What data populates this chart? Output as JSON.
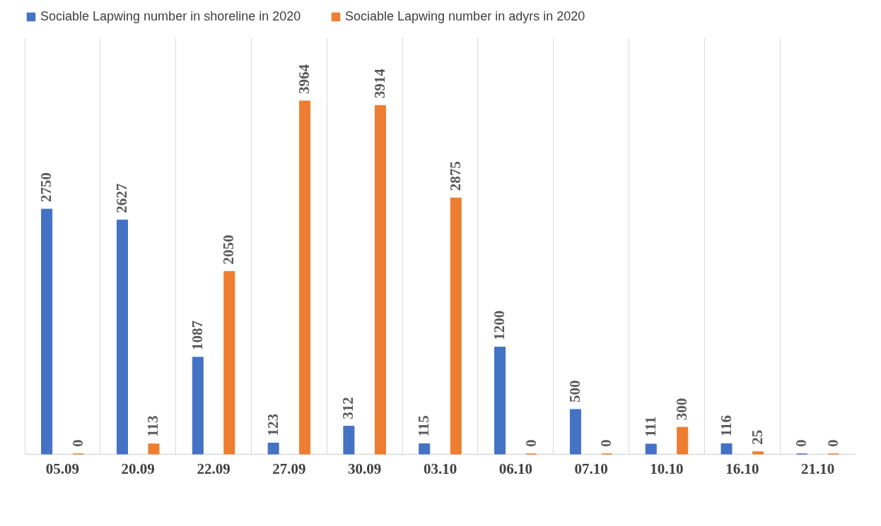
{
  "chart_data": {
    "type": "bar",
    "categories": [
      "05.09",
      "20.09",
      "22.09",
      "27.09",
      "30.09",
      "03.10",
      "06.10",
      "07.10",
      "10.10",
      "16.10",
      "21.10"
    ],
    "series": [
      {
        "name": "Sociable Lapwing number in shoreline in 2020",
        "color": "#4472c4",
        "values": [
          2750,
          2627,
          1087,
          123,
          312,
          115,
          1200,
          500,
          111,
          116,
          0
        ]
      },
      {
        "name": "Sociable Lapwing  number in adyrs in 2020",
        "color": "#ed7d31",
        "values": [
          0,
          113,
          2050,
          3964,
          3914,
          2875,
          0,
          0,
          300,
          25,
          0
        ]
      }
    ],
    "data_labels": true,
    "grid": "x",
    "legend": "top"
  }
}
